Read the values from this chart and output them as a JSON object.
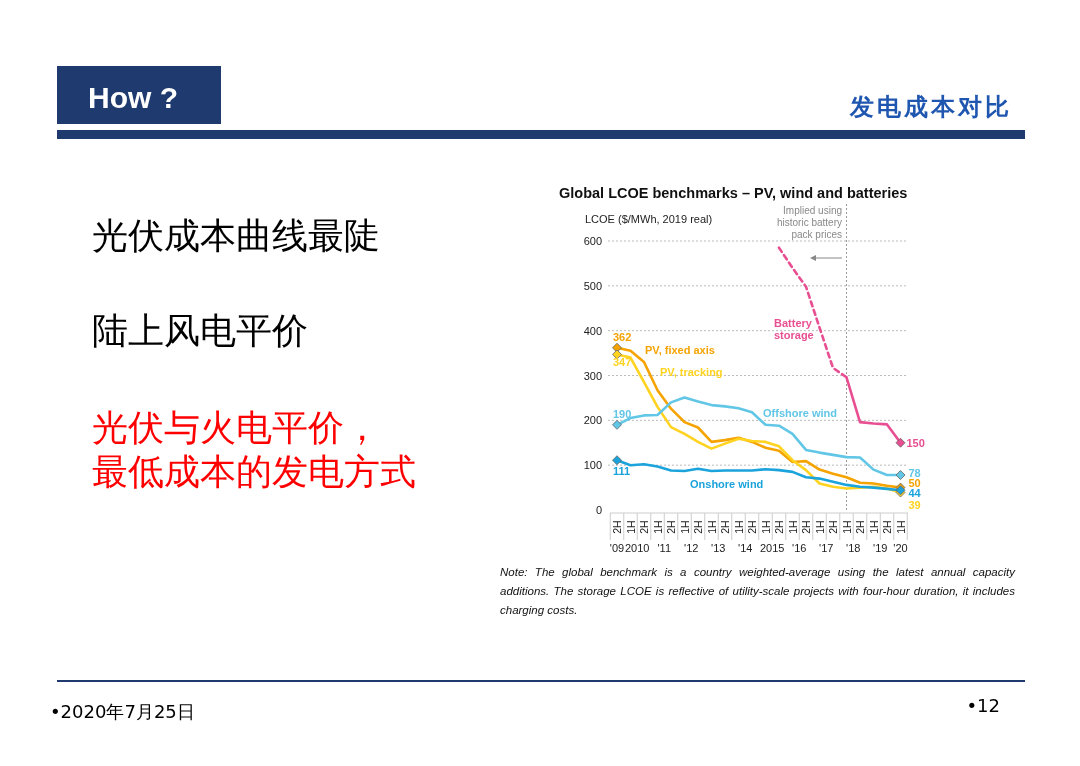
{
  "chart_data": [
    {
      "type": "other",
      "title": "How ?",
      "subtitle": "发电成本对比",
      "annotations": [
        "光伏成本曲线最陡",
        "陆上风电平价",
        "光伏与火电平价，",
        "最低成本的发电方式",
        "•2020年7月25日",
        "•12"
      ]
    },
    {
      "type": "line",
      "title": "Global LCOE benchmarks – PV, wind and batteries",
      "ylabel": "LCOE ($/MWh, 2019 real)",
      "x": [
        "2009-07",
        "2010-01",
        "2010-07",
        "2011-01",
        "2011-07",
        "2012-01",
        "2012-07",
        "2013-01",
        "2013-07",
        "2014-01",
        "2014-07",
        "2015-01",
        "2015-07",
        "2016-01",
        "2016-07",
        "2017-01",
        "2017-07",
        "2018-01",
        "2018-07",
        "2019-01",
        "2019-07",
        "2020-01"
      ],
      "xlim": [
        "2009-04",
        "2020-04"
      ],
      "xticks": [
        {
          "value": "2009-07",
          "label": "2H"
        },
        {
          "value": "2010-01",
          "label": "1H"
        },
        {
          "value": "2010-07",
          "label": "2H"
        },
        {
          "value": "2011-01",
          "label": "1H"
        },
        {
          "value": "2011-07",
          "label": "2H"
        },
        {
          "value": "2012-01",
          "label": "1H"
        },
        {
          "value": "2012-07",
          "label": "2H"
        },
        {
          "value": "2013-01",
          "label": "1H"
        },
        {
          "value": "2013-07",
          "label": "2H"
        },
        {
          "value": "2014-01",
          "label": "1H"
        },
        {
          "value": "2014-07",
          "label": "2H"
        },
        {
          "value": "2015-01",
          "label": "1H"
        },
        {
          "value": "2015-07",
          "label": "2H"
        },
        {
          "value": "2016-01",
          "label": "1H"
        },
        {
          "value": "2016-07",
          "label": "2H"
        },
        {
          "value": "2017-01",
          "label": "1H"
        },
        {
          "value": "2017-07",
          "label": "2H"
        },
        {
          "value": "2018-01",
          "label": "1H"
        },
        {
          "value": "2018-07",
          "label": "2H"
        },
        {
          "value": "2019-01",
          "label": "1H"
        },
        {
          "value": "2019-07",
          "label": "2H"
        },
        {
          "value": "2020-01",
          "label": "1H"
        }
      ],
      "ylim": [
        0,
        600
      ],
      "yticks": [
        0,
        100,
        200,
        300,
        400,
        500,
        600
      ],
      "grid": "y",
      "line_style": "solid",
      "series": [
        {
          "name": "PV, fixed axis",
          "color": "#f5a300",
          "values": [
            362,
            355,
            330,
            267,
            226,
            196,
            184,
            152,
            156,
            161,
            152,
            139,
            132,
            107,
            109,
            90,
            81,
            73,
            61,
            59,
            54,
            50
          ],
          "value_labels": [
            "362",
            null,
            null,
            null,
            null,
            null,
            null,
            null,
            null,
            null,
            null,
            null,
            null,
            null,
            null,
            null,
            null,
            null,
            null,
            null,
            null,
            "50"
          ]
        },
        {
          "name": "PV, tracking",
          "color": "#ffd320",
          "values": [
            347,
            340,
            285,
            230,
            185,
            170,
            152,
            137,
            148,
            159,
            154,
            152,
            142,
            111,
            89,
            59,
            52,
            48,
            50,
            52,
            48,
            39
          ],
          "value_labels": [
            "347",
            null,
            null,
            null,
            null,
            null,
            null,
            null,
            null,
            null,
            null,
            null,
            null,
            null,
            null,
            null,
            null,
            null,
            null,
            null,
            null,
            "39"
          ]
        },
        {
          "name": "Offshore wind",
          "color": "#62c6e6",
          "values": [
            190,
            205,
            211,
            212,
            240,
            251,
            242,
            234,
            231,
            227,
            218,
            190,
            188,
            170,
            134,
            128,
            123,
            118,
            117,
            90,
            78,
            78
          ],
          "value_labels": [
            "190",
            null,
            null,
            null,
            null,
            null,
            null,
            null,
            null,
            null,
            null,
            null,
            null,
            null,
            null,
            null,
            null,
            null,
            null,
            null,
            null,
            "78"
          ]
        },
        {
          "name": "Onshore wind",
          "color": "#1ba3dc",
          "values": [
            111,
            100,
            102,
            97,
            88,
            87,
            92,
            87,
            88,
            88,
            88,
            91,
            89,
            85,
            73,
            70,
            63,
            56,
            52,
            50,
            47,
            44
          ],
          "value_labels": [
            "111",
            null,
            null,
            null,
            null,
            null,
            null,
            null,
            null,
            null,
            null,
            null,
            null,
            null,
            null,
            null,
            null,
            null,
            null,
            null,
            null,
            "44"
          ]
        },
        {
          "color": "#e84f92",
          "line_style": "dashed",
          "values": [
            null,
            null,
            null,
            null,
            null,
            null,
            null,
            null,
            null,
            null,
            null,
            null,
            585,
            540,
            498,
            407,
            317,
            296,
            null,
            null,
            null,
            null
          ]
        },
        {
          "name": "Battery storage",
          "color": "#e84f92",
          "values": [
            null,
            null,
            null,
            null,
            null,
            null,
            null,
            null,
            null,
            null,
            null,
            null,
            null,
            null,
            null,
            null,
            null,
            296,
            196,
            193,
            191,
            150
          ],
          "value_labels": [
            null,
            null,
            null,
            null,
            null,
            null,
            null,
            null,
            null,
            null,
            null,
            null,
            null,
            null,
            null,
            null,
            null,
            null,
            null,
            null,
            null,
            "150"
          ]
        }
      ],
      "ref_lines": [
        {
          "axis": "x",
          "value": "2018-01",
          "color": "#999999",
          "line_style": "dotted"
        }
      ],
      "annotations": [
        "Implied using historic battery pack prices",
        "Note: The global benchmark is a country weighted-average using the latest annual capacity additions. The storage LCOE is reflective of utility-scale projects with four-hour duration, it includes charging costs.",
        "'09",
        "2010",
        "'11",
        "'12",
        "'13",
        "'14",
        "2015",
        "'16",
        "'17",
        "'18",
        "'19",
        "'20"
      ]
    }
  ]
}
